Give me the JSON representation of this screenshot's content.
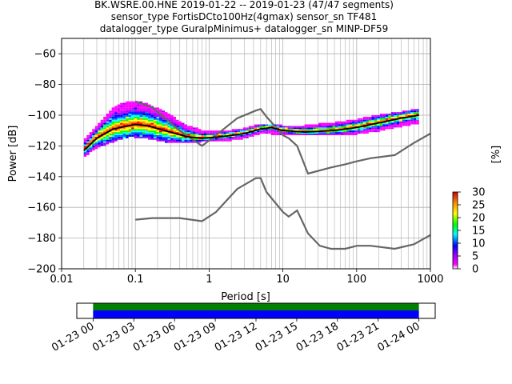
{
  "title_lines": [
    "BK.WSRE.00.HNE   2019-01-22 -- 2019-01-23  (47/47 segments)",
    "sensor_type FortisDCto100Hz(4gmax) sensor_sn TF481",
    "datalogger_type GuralpMinimus+ datalogger_sn MINP-DF59"
  ],
  "colors": {
    "noise_model": "#666666",
    "mean_line": "#000000",
    "median_line": "#00aa00",
    "coverage_top": "#008000",
    "coverage_bottom": "#0000ff",
    "colormap": [
      "#ffffff",
      "#ff00ff",
      "#9900ff",
      "#0000ff",
      "#00ffff",
      "#00ff00",
      "#ffff00",
      "#ff8800",
      "#ff0000"
    ]
  },
  "chart_data": [
    {
      "type": "heatmap",
      "xlabel": "Period [s]",
      "ylabel": "Power [dB]",
      "xscale": "log",
      "xlim": [
        0.01,
        1000
      ],
      "ylim": [
        -200,
        -50
      ],
      "x_ticks": [
        "0.01",
        "0.1",
        "1",
        "10",
        "100",
        "1000"
      ],
      "x_tick_values": [
        0.01,
        0.1,
        1,
        10,
        100,
        1000
      ],
      "y_ticks": [
        "−200",
        "−180",
        "−160",
        "−140",
        "−120",
        "−100",
        "−80",
        "−60"
      ],
      "y_tick_values": [
        -200,
        -180,
        -160,
        -140,
        -120,
        -100,
        -80,
        -60
      ],
      "grid": true,
      "colorbar": {
        "label": "[%]",
        "ticks": [
          "0",
          "5",
          "10",
          "15",
          "20",
          "25",
          "30"
        ],
        "tick_values": [
          0,
          5,
          10,
          15,
          20,
          25,
          30
        ],
        "range": [
          0,
          30
        ]
      },
      "noise_models": [
        {
          "period": [
            0.1,
            0.17,
            0.4,
            0.8,
            1.24,
            2.4,
            4.3,
            5.0,
            6.0,
            10,
            12,
            15.6,
            21.9,
            31.6,
            45,
            70,
            101,
            154,
            328,
            600,
            1000
          ],
          "power": [
            -91,
            -95,
            -110,
            -120,
            -113,
            -102,
            -97,
            -96,
            -101,
            -113,
            -115,
            -120,
            -138,
            -136,
            -134,
            -132,
            -130,
            -128,
            -126,
            -118,
            -112
          ]
        },
        {
          "period": [
            0.1,
            0.17,
            0.4,
            0.8,
            1.24,
            2.4,
            4.3,
            5.0,
            6.0,
            10,
            12,
            15.6,
            21.9,
            31.6,
            45,
            70,
            101,
            154,
            328,
            600,
            1000
          ],
          "power": [
            -168,
            -167,
            -167,
            -169,
            -163,
            -148,
            -141,
            -141,
            -150,
            -163,
            -166,
            -162,
            -177,
            -185,
            -187,
            -187,
            -185,
            -185,
            -187,
            -184,
            -178
          ]
        }
      ],
      "mean_curve": {
        "period": [
          0.02,
          0.03,
          0.05,
          0.1,
          0.15,
          0.25,
          0.5,
          0.8,
          1.5,
          3,
          5,
          7,
          10,
          20,
          50,
          100,
          200,
          400,
          700
        ],
        "power": [
          -123,
          -115,
          -109,
          -106,
          -107,
          -110,
          -114,
          -115,
          -114,
          -112,
          -109,
          -108,
          -110,
          -111,
          -110,
          -108,
          -105,
          -102,
          -100
        ]
      },
      "psd_envelope": {
        "period": [
          0.02,
          0.03,
          0.05,
          0.08,
          0.1,
          0.15,
          0.25,
          0.5,
          0.8,
          1.5,
          3,
          5,
          7,
          10,
          20,
          50,
          100,
          200,
          400,
          700
        ],
        "upper": [
          -118,
          -108,
          -96,
          -92,
          -92,
          -94,
          -99,
          -108,
          -111,
          -112,
          -110,
          -107,
          -107,
          -108,
          -108,
          -106,
          -104,
          -101,
          -99,
          -97
        ],
        "lower": [
          -127,
          -121,
          -117,
          -114,
          -114,
          -115,
          -117,
          -118,
          -117,
          -117,
          -115,
          -112,
          -112,
          -113,
          -113,
          -113,
          -112,
          -110,
          -107,
          -105
        ]
      }
    },
    {
      "type": "bar",
      "xlabel": "",
      "x_ticks": [
        "01-23 00",
        "01-23 03",
        "01-23 06",
        "01-23 09",
        "01-23 12",
        "01-23 15",
        "01-23 18",
        "01-23 21",
        "01-24 00"
      ],
      "x_tick_hours": [
        0,
        3,
        6,
        9,
        12,
        15,
        18,
        21,
        24
      ],
      "xlim_hours": [
        -1.2,
        25.2
      ],
      "coverage": [
        {
          "start_hour": 0,
          "end_hour": 24,
          "level": "top"
        },
        {
          "start_hour": 0,
          "end_hour": 24,
          "level": "bottom"
        }
      ]
    }
  ]
}
